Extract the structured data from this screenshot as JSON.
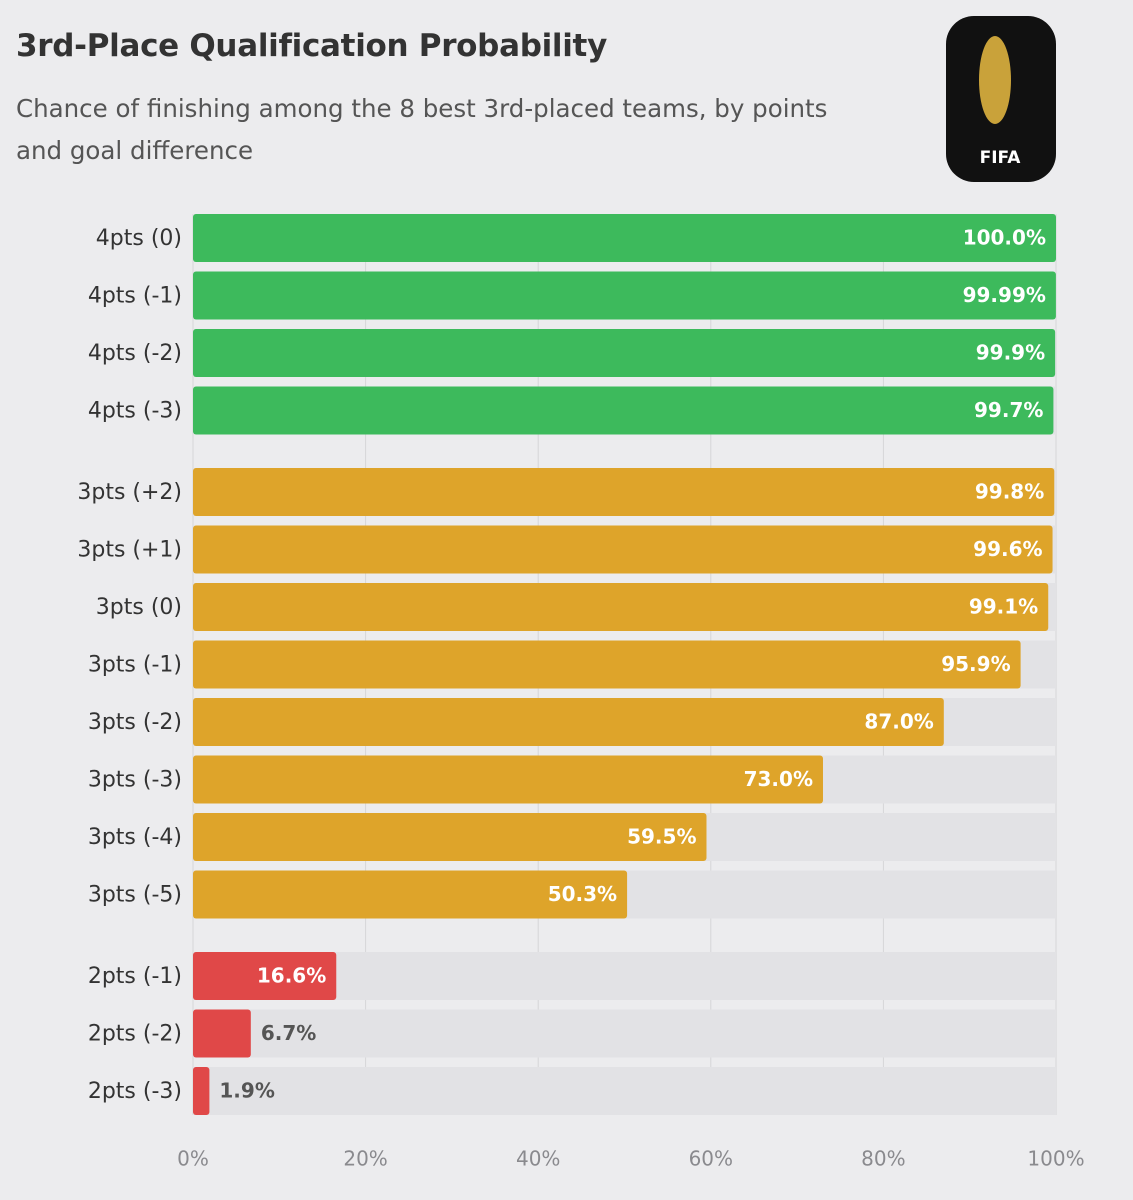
{
  "chart_data": {
    "type": "bar",
    "orientation": "horizontal",
    "title": "3rd-Place Qualification Probability",
    "subtitle": "Chance of finishing among the 8 best 3rd-placed teams, by points and goal difference",
    "logo_text": "FIFA",
    "groups": [
      {
        "color": "#3dba5c",
        "categories": [
          "4pts (0)",
          "4pts (-1)",
          "4pts (-2)",
          "4pts (-3)"
        ],
        "values": [
          100.0,
          99.99,
          99.9,
          99.7
        ],
        "value_labels": [
          "100.0%",
          "99.99%",
          "99.9%",
          "99.7%"
        ]
      },
      {
        "color": "#dea42a",
        "categories": [
          "3pts (+2)",
          "3pts (+1)",
          "3pts (0)",
          "3pts (-1)",
          "3pts (-2)",
          "3pts (-3)",
          "3pts (-4)",
          "3pts (-5)"
        ],
        "values": [
          99.8,
          99.6,
          99.1,
          95.9,
          87.0,
          73.0,
          59.5,
          50.3
        ],
        "value_labels": [
          "99.8%",
          "99.6%",
          "99.1%",
          "95.9%",
          "87.0%",
          "73.0%",
          "59.5%",
          "50.3%"
        ]
      },
      {
        "color": "#e04848",
        "categories": [
          "2pts (-1)",
          "2pts (-2)",
          "2pts (-3)"
        ],
        "values": [
          16.6,
          6.7,
          1.9
        ],
        "value_labels": [
          "16.6%",
          "6.7%",
          "1.9%"
        ]
      }
    ],
    "xlim": [
      0,
      100
    ],
    "xticks": [
      {
        "value": 0,
        "label": "0%"
      },
      {
        "value": 20,
        "label": "20%"
      },
      {
        "value": 40,
        "label": "40%"
      },
      {
        "value": 60,
        "label": "60%"
      },
      {
        "value": 80,
        "label": "80%"
      },
      {
        "value": 100,
        "label": "100%"
      }
    ],
    "grid": true
  }
}
